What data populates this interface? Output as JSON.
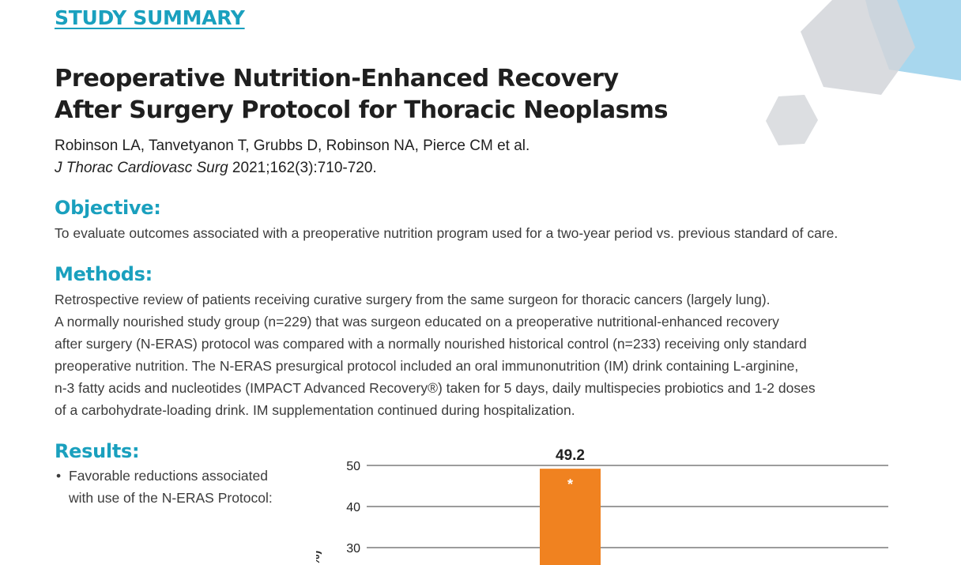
{
  "header": {
    "label": "STUDY SUMMARY",
    "title_lines": [
      "Preoperative Nutrition-Enhanced Recovery",
      "After Surgery Protocol for Thoracic Neoplasms"
    ],
    "authors": "Robinson LA, Tanvetyanon T, Grubbs D, Robinson NA, Pierce CM et al.",
    "journal": "J Thorac Cardiovasc Surg",
    "citation": " 2021;162(3):710-720."
  },
  "objective": {
    "heading": "Objective:",
    "text": "To evaluate outcomes associated with a preoperative nutrition program used for a two-year period vs. previous standard of care."
  },
  "methods": {
    "heading": "Methods:",
    "lines": [
      "Retrospective review of patients receiving curative surgery from the same surgeon for thoracic cancers (largely lung).",
      "A normally nourished study group (n=229) that was surgeon educated on a preoperative nutritional-enhanced recovery",
      "after surgery (N-ERAS) protocol was compared with a normally nourished historical control (n=233) receiving only standard",
      "preoperative nutrition. The N-ERAS presurgical protocol included an oral immunonutrition (IM) drink containing L-arginine,",
      "n-3 fatty acids and nucleotides (IMPACT Advanced Recovery®) taken for 5 days, daily multispecies probiotics and 1-2 doses",
      "of a carbohydrate-loading drink. IM supplementation continued during hospitalization."
    ]
  },
  "results": {
    "heading": "Results:",
    "bullet": "•",
    "bullet_lines": [
      "Favorable reductions associated",
      "with use of the N-ERAS Protocol:"
    ]
  },
  "chart_data": {
    "type": "bar",
    "ticks": [
      30,
      40,
      50
    ],
    "ylabel_fragment": "%)",
    "values": [
      49.2
    ],
    "value_labels": [
      "49.2"
    ],
    "marker": "*",
    "bar_color": "#f08220"
  }
}
